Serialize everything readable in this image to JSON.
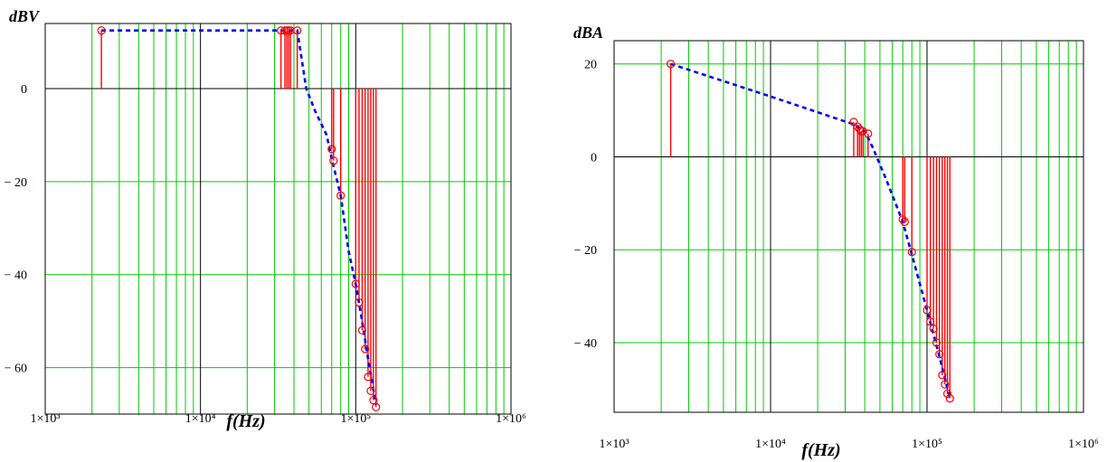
{
  "chart_data": [
    {
      "type": "line",
      "ylabel": "dBV",
      "xlabel": "f(Hz)",
      "x_scale": "log",
      "xlim": [
        1000,
        1000000
      ],
      "ylim": [
        -70,
        14
      ],
      "x_ticks": [
        1000,
        10000,
        100000,
        1000000
      ],
      "x_tick_labels": [
        "1×10³",
        "1×10⁴",
        "1×10⁵",
        "1×10⁶"
      ],
      "y_ticks": [
        0,
        -20,
        -40,
        -60
      ],
      "y_tick_labels": [
        "0",
        "− 20",
        "− 40",
        "− 60"
      ],
      "grid": true,
      "series": [
        {
          "style": "stem",
          "color": "#ff0000",
          "marker": "circle",
          "x": [
            2300,
            33000,
            35000,
            36000,
            37000,
            38000,
            42000,
            70000,
            72000,
            80000,
            100000,
            105000,
            110000,
            115000,
            120000,
            125000,
            130000,
            135000
          ],
          "y": [
            12.5,
            12.5,
            12.5,
            12.5,
            12.5,
            12.5,
            12.5,
            -13,
            -15.5,
            -23,
            -42,
            -46,
            -52,
            -56,
            -62,
            -65,
            -67,
            -68.5
          ]
        },
        {
          "style": "dashed-line",
          "color": "#0000ff",
          "x": [
            2300,
            42000,
            48000,
            55000,
            65000,
            70000,
            80000,
            90000,
            100000,
            110000,
            120000,
            135000
          ],
          "y": [
            12.5,
            12.5,
            0,
            -5,
            -10,
            -15,
            -23,
            -35,
            -42,
            -50,
            -58,
            -68
          ]
        }
      ]
    },
    {
      "type": "line",
      "ylabel": "dBA",
      "xlabel": "f(Hz)",
      "x_scale": "log",
      "xlim": [
        1000,
        1000000
      ],
      "ylim": [
        -55,
        25
      ],
      "x_ticks": [
        1000,
        10000,
        100000,
        1000000
      ],
      "x_tick_labels": [
        "1×10³",
        "1×10⁴",
        "1×10⁵",
        "1×10⁶"
      ],
      "y_ticks": [
        20,
        0,
        -20,
        -40
      ],
      "y_tick_labels": [
        "20",
        "0",
        "− 20",
        "− 40"
      ],
      "grid": true,
      "series": [
        {
          "style": "stem",
          "color": "#ff0000",
          "marker": "circle",
          "x": [
            2300,
            34000,
            36000,
            37000,
            38000,
            39000,
            42000,
            70000,
            72000,
            80000,
            100000,
            105000,
            110000,
            115000,
            120000,
            125000,
            130000,
            135000,
            140000
          ],
          "y": [
            20,
            7.5,
            6.5,
            6,
            5.5,
            5.5,
            5,
            -13.5,
            -14,
            -20.5,
            -33,
            -35.5,
            -37,
            -40,
            -42.5,
            -47,
            -49,
            -51,
            -52
          ]
        },
        {
          "style": "dashed-line",
          "color": "#0000ff",
          "x": [
            2300,
            10000,
            34000,
            40000,
            45000,
            55000,
            70000,
            80000,
            100000,
            120000,
            140000
          ],
          "y": [
            20,
            13,
            7,
            5.5,
            2,
            -5,
            -14,
            -21,
            -33,
            -43,
            -52
          ]
        }
      ]
    }
  ]
}
